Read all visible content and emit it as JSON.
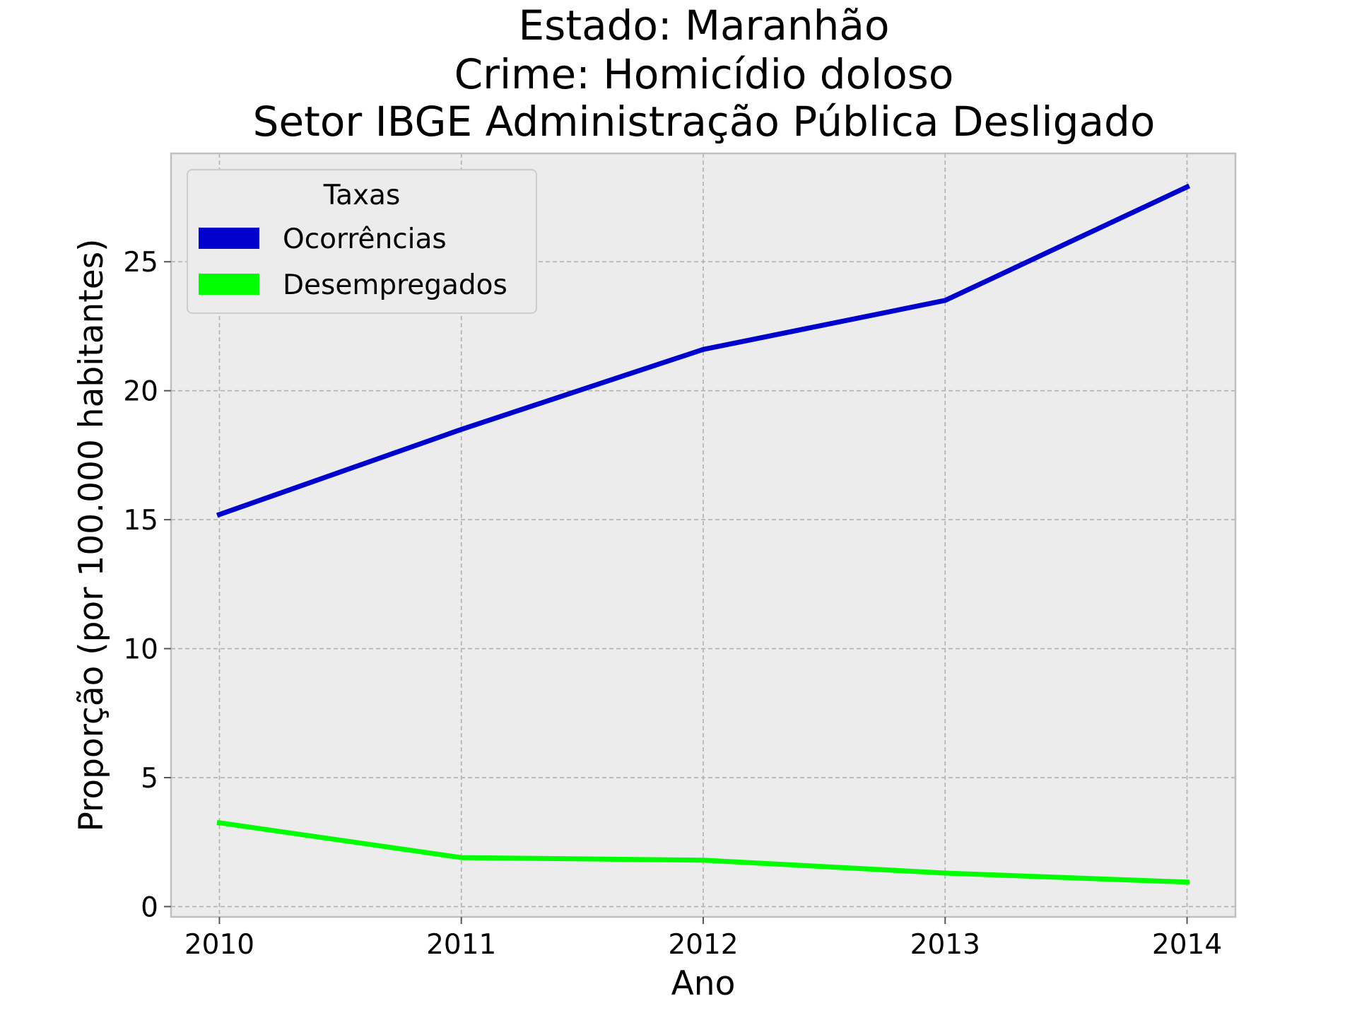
{
  "chart_data": {
    "type": "line",
    "title_lines": [
      "Estado: Maranhão",
      "Crime: Homicídio doloso",
      "Setor IBGE  Administração Pública   Desligado"
    ],
    "xlabel": "Ano",
    "ylabel": "Proporção (por 100.000 habitantes)",
    "x": [
      2010,
      2011,
      2012,
      2013,
      2014
    ],
    "x_tick_labels": [
      "2010",
      "2011",
      "2012",
      "2013",
      "2014"
    ],
    "y_ticks": [
      0,
      5,
      10,
      15,
      20,
      25
    ],
    "y_tick_labels": [
      "0",
      "5",
      "10",
      "15",
      "20",
      "25"
    ],
    "xlim": [
      2009.8,
      2014.2
    ],
    "ylim": [
      -0.4,
      29.2
    ],
    "grid": true,
    "legend": {
      "title": "Taxas",
      "placement": "top-left"
    },
    "series": [
      {
        "name": "Ocorrências",
        "color": "#0000cc",
        "values": [
          15.2,
          18.5,
          21.6,
          23.5,
          27.9
        ]
      },
      {
        "name": "Desempregados",
        "color": "#00ff00",
        "values": [
          3.25,
          1.9,
          1.8,
          1.3,
          0.95
        ]
      }
    ],
    "plot_background": "#ececec",
    "frame_color": "#bfbfbf"
  }
}
